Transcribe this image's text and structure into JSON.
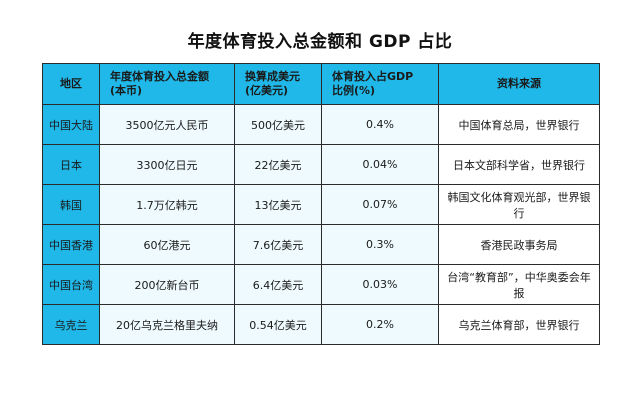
{
  "title": "年度体育投入总金额和 GDP 占比",
  "headers": {
    "region": "地区",
    "local_total_line1": "年度体育投入总金额",
    "local_total_line2": "(本币)",
    "usd_line1": "换算成美元",
    "usd_line2": "(亿美元)",
    "gdp_line1": "体育投入占GDP",
    "gdp_line2": "比例(%)",
    "source": "资料来源"
  },
  "rows": [
    {
      "region": "中国大陆",
      "local": "3500亿元人民币",
      "usd": "500亿美元",
      "gdp": "0.4%",
      "source": "中国体育总局，世界银行"
    },
    {
      "region": "日本",
      "local": "3300亿日元",
      "usd": "22亿美元",
      "gdp": "0.04%",
      "source": "日本文部科学省，世界银行"
    },
    {
      "region": "韩国",
      "local": "1.7万亿韩元",
      "usd": "13亿美元",
      "gdp": "0.07%",
      "source": "韩国文化体育观光部，世界银行"
    },
    {
      "region": "中国香港",
      "local": "60亿港元",
      "usd": "7.6亿美元",
      "gdp": "0.3%",
      "source": "香港民政事务局"
    },
    {
      "region": "中国台湾",
      "local": "200亿新台币",
      "usd": "6.4亿美元",
      "gdp": "0.03%",
      "source": "台湾“教育部”，中华奥委会年报"
    },
    {
      "region": "乌克兰",
      "local": "20亿乌克兰格里夫纳",
      "usd": "0.54亿美元",
      "gdp": "0.2%",
      "source": "乌克兰体育部，世界银行"
    }
  ],
  "colors": {
    "header_bg": "#1fb8e8",
    "cell_bg": "#eefafd",
    "border": "#2b2b2b"
  }
}
